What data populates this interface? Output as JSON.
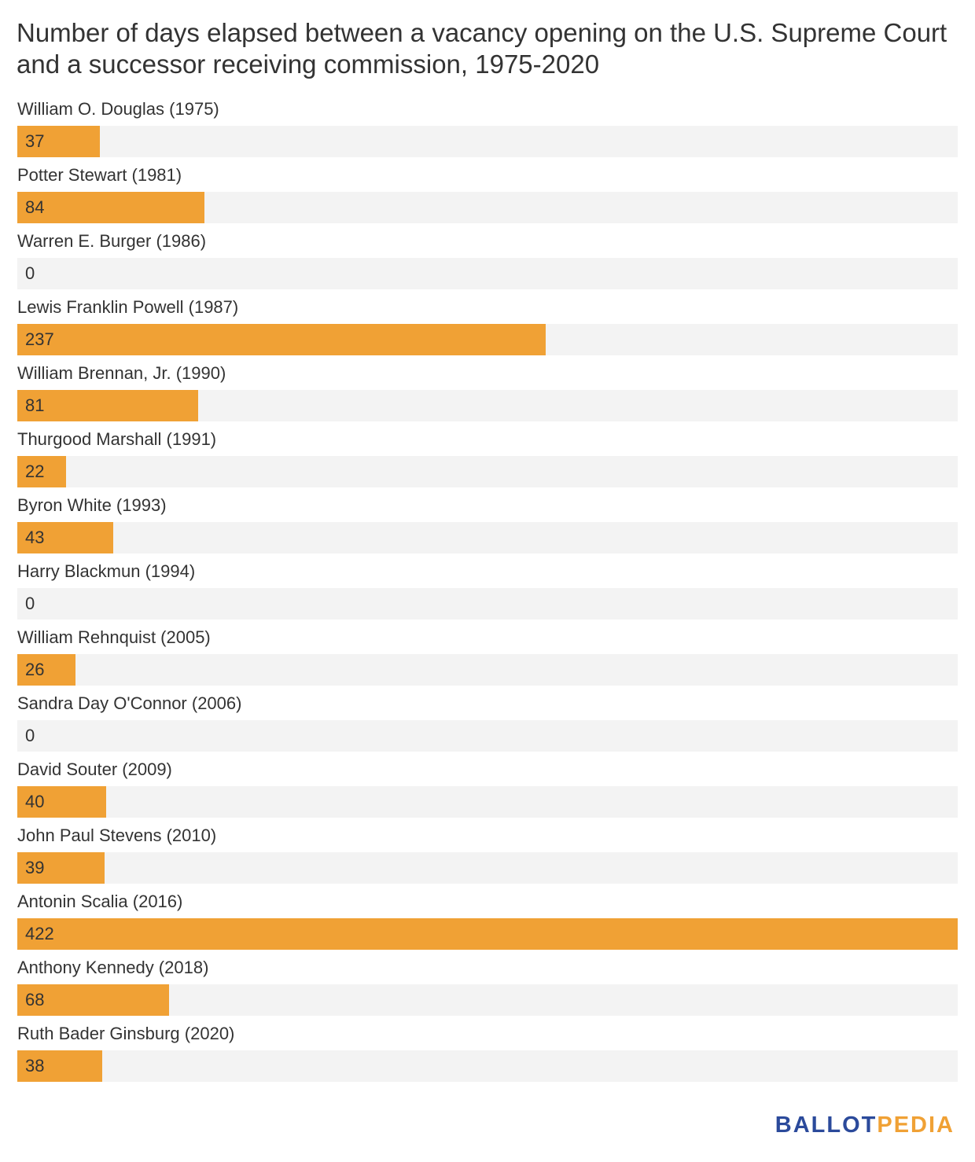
{
  "title": "Number of days elapsed between a vacancy opening on the U.S. Supreme Court and a successor receiving commission, 1975-2020",
  "colors": {
    "bar": "#f0a135",
    "track": "#f3f3f3",
    "text": "#333333",
    "brand_primary": "#2b4a9b",
    "brand_accent": "#f0a135"
  },
  "brand": {
    "part1": "BALLOT",
    "part2": "PEDIA"
  },
  "chart_data": {
    "type": "bar",
    "orientation": "horizontal",
    "title": "Number of days elapsed between a vacancy opening on the U.S. Supreme Court and a successor receiving commission, 1975-2020",
    "xlabel": "",
    "ylabel": "",
    "xlim": [
      0,
      422
    ],
    "grid": false,
    "legend": "none",
    "categories": [
      "William O. Douglas (1975)",
      "Potter Stewart (1981)",
      "Warren E. Burger (1986)",
      "Lewis Franklin Powell (1987)",
      "William Brennan, Jr. (1990)",
      "Thurgood Marshall (1991)",
      "Byron White (1993)",
      "Harry Blackmun (1994)",
      "William Rehnquist (2005)",
      "Sandra Day O'Connor (2006)",
      "David Souter (2009)",
      "John Paul Stevens (2010)",
      "Antonin Scalia (2016)",
      "Anthony Kennedy (2018)",
      "Ruth Bader Ginsburg (2020)"
    ],
    "values": [
      37,
      84,
      0,
      237,
      81,
      22,
      43,
      0,
      26,
      0,
      40,
      39,
      422,
      68,
      38
    ]
  }
}
